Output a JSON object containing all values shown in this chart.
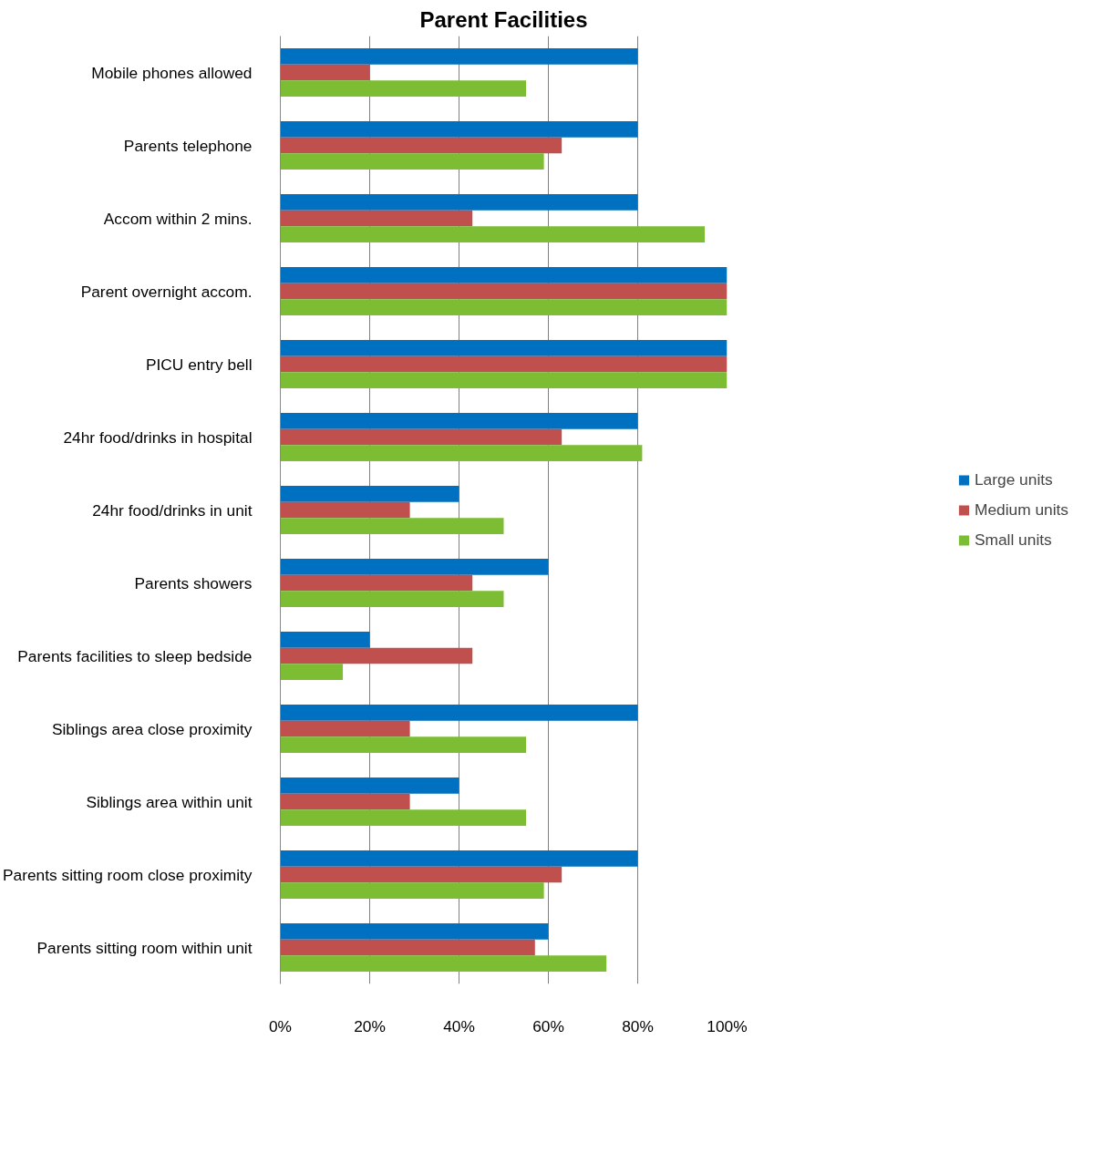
{
  "chart_data": {
    "type": "bar",
    "orientation": "horizontal",
    "title": "Parent Facilities",
    "categories": [
      "Mobile phones allowed",
      "Parents telephone",
      "Accom within 2 mins.",
      "Parent overnight accom.",
      "PICU entry bell",
      "24hr food/drinks in hospital",
      "24hr food/drinks in unit",
      "Parents showers",
      "Parents facilities to sleep bedside",
      "Siblings area close proximity",
      "Siblings area within unit",
      "Parents sitting room close proximity",
      "Parents sitting room within unit"
    ],
    "series": [
      {
        "name": "Large units",
        "color": "#0070c0",
        "values": [
          80,
          80,
          80,
          100,
          100,
          80,
          40,
          60,
          20,
          80,
          40,
          80,
          60
        ]
      },
      {
        "name": "Medium units",
        "color": "#c0504d",
        "values": [
          20,
          63,
          43,
          100,
          100,
          63,
          29,
          43,
          43,
          29,
          29,
          63,
          57
        ]
      },
      {
        "name": "Small units",
        "color": "#7dbd34",
        "values": [
          55,
          59,
          95,
          100,
          100,
          81,
          50,
          50,
          14,
          55,
          55,
          59,
          73
        ]
      }
    ],
    "xlim": [
      0,
      100
    ],
    "xticks": [
      {
        "value": 0,
        "label": "0%"
      },
      {
        "value": 20,
        "label": "20%"
      },
      {
        "value": 40,
        "label": "40%"
      },
      {
        "value": 60,
        "label": "60%"
      },
      {
        "value": 80,
        "label": "80%"
      },
      {
        "value": 100,
        "label": "100%"
      }
    ],
    "grid": "x",
    "legend": "right"
  }
}
